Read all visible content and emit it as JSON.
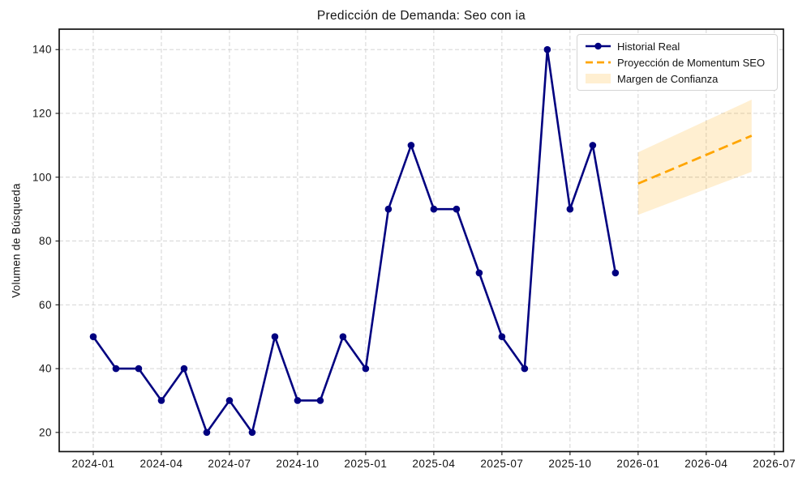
{
  "chart_data": {
    "type": "line",
    "title": "Predicción de Demanda: Seo con ia",
    "xlabel": "",
    "ylabel": "Volumen de Búsqueda",
    "grid": true,
    "legend_position": "upper right",
    "x_tick_labels": [
      "2024-01",
      "2024-04",
      "2024-07",
      "2024-10",
      "2025-01",
      "2025-04",
      "2025-07",
      "2025-10",
      "2026-01",
      "2026-04",
      "2026-07"
    ],
    "y_ticks": [
      20,
      40,
      60,
      80,
      100,
      120,
      140
    ],
    "xlim_months": [
      -1.5,
      30.4
    ],
    "ylim": [
      14,
      146.4
    ],
    "colors": {
      "history": "#000080",
      "projection": "#FFA500",
      "band_fill": "rgba(255,165,0,0.18)",
      "grid": "#cfcfcf",
      "axis": "#111111",
      "text": "#141414"
    },
    "series": [
      {
        "name": "Historial Real",
        "type": "line",
        "style": "solid",
        "marker": "circle",
        "color": "#000080",
        "x": [
          "2024-01",
          "2024-02",
          "2024-03",
          "2024-04",
          "2024-05",
          "2024-06",
          "2024-07",
          "2024-08",
          "2024-09",
          "2024-10",
          "2024-11",
          "2024-12",
          "2025-01",
          "2025-02",
          "2025-03",
          "2025-04",
          "2025-05",
          "2025-06",
          "2025-07",
          "2025-08",
          "2025-09",
          "2025-10",
          "2025-11",
          "2025-12"
        ],
        "values": [
          50,
          40,
          40,
          30,
          40,
          20,
          30,
          20,
          50,
          30,
          30,
          50,
          40,
          90,
          110,
          90,
          90,
          70,
          50,
          40,
          140,
          90,
          110,
          70
        ]
      },
      {
        "name": "Proyección de Momentum SEO",
        "type": "line",
        "style": "dashed",
        "color": "#FFA500",
        "x": [
          "2026-01",
          "2026-02",
          "2026-03",
          "2026-04",
          "2026-05",
          "2026-06"
        ],
        "values": [
          98,
          101,
          104,
          107,
          110,
          113
        ]
      },
      {
        "name": "Margen de Confianza",
        "type": "band",
        "color": "#FFA500",
        "fill_opacity": 0.18,
        "x": [
          "2026-01",
          "2026-02",
          "2026-03",
          "2026-04",
          "2026-05",
          "2026-06"
        ],
        "lower": [
          88.2,
          90.9,
          93.6,
          96.3,
          99.0,
          101.7
        ],
        "upper": [
          107.8,
          111.1,
          114.4,
          117.7,
          121.0,
          124.3
        ]
      }
    ]
  },
  "legend": {
    "items": [
      {
        "label": "Historial Real"
      },
      {
        "label": "Proyección de Momentum SEO"
      },
      {
        "label": "Margen de Confianza"
      }
    ]
  }
}
